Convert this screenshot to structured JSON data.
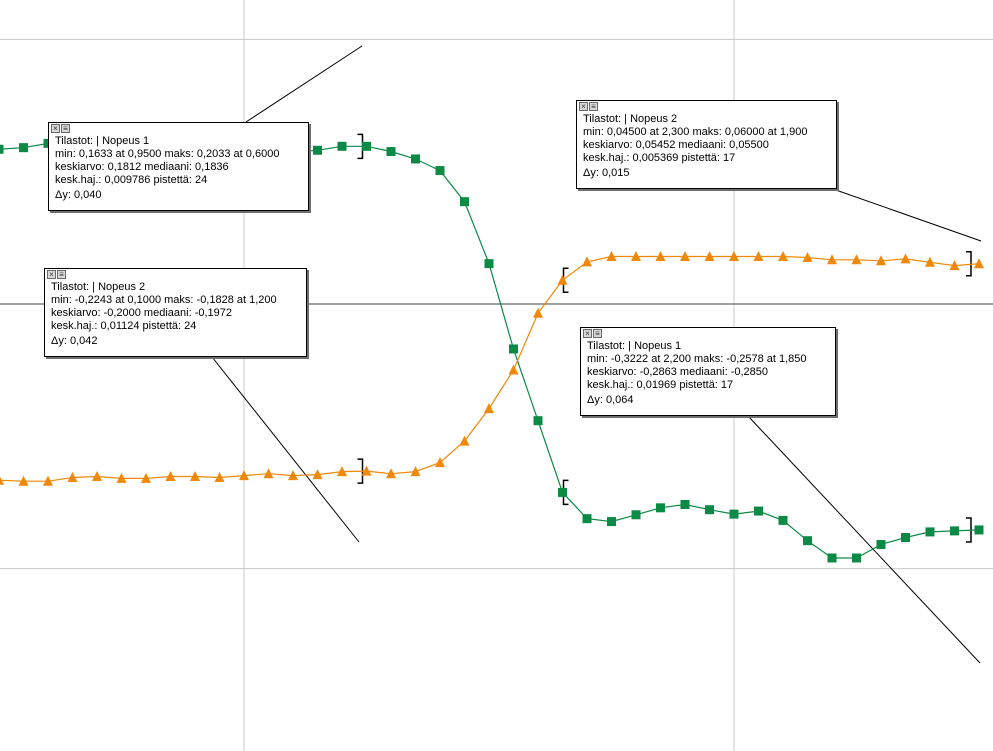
{
  "colors": {
    "series_green": "#0b8a45",
    "series_orange": "#f0880a",
    "grid": "#c8c8c8",
    "x_axis": "#808080",
    "background": "#ffffff"
  },
  "chart_data": {
    "type": "line",
    "title": "",
    "xlabel": "",
    "ylabel": "",
    "grid": true,
    "series": [
      {
        "name": "Nopeus 1",
        "marker": "square",
        "color": "#0b8a45",
        "x": [
          0.0,
          0.05,
          0.1,
          0.15,
          0.2,
          0.25,
          0.3,
          0.35,
          0.4,
          0.45,
          0.5,
          0.55,
          0.6,
          0.65,
          0.7,
          0.75,
          0.8,
          0.85,
          0.9,
          0.95,
          1.0,
          1.05,
          1.1,
          1.15,
          1.2,
          1.25,
          1.3,
          1.35,
          1.4,
          1.45,
          1.5,
          1.55,
          1.6,
          1.65,
          1.7,
          1.75,
          1.8,
          1.85,
          1.9,
          1.95,
          2.0
        ],
        "y": [
          0.1959,
          0.1979,
          0.2033,
          0.1922,
          0.1881,
          0.1922,
          0.1922,
          0.1881,
          0.1856,
          0.1836,
          0.1836,
          0.1897,
          0.1922,
          0.1946,
          0.1996,
          0.1996,
          0.193,
          0.1836,
          0.1689,
          0.1295,
          0.0511,
          -0.0569,
          -0.1477,
          -0.2385,
          -0.2717,
          -0.2754,
          -0.2668,
          -0.258,
          -0.2538,
          -0.2604,
          -0.266,
          -0.2621,
          -0.2739,
          -0.2996,
          -0.3215,
          -0.3215,
          -0.3044,
          -0.2956,
          -0.2885,
          -0.2872,
          -0.286
        ]
      },
      {
        "name": "Nopeus 2",
        "marker": "triangle",
        "color": "#f0880a",
        "x": [
          0.0,
          0.05,
          0.1,
          0.15,
          0.2,
          0.25,
          0.3,
          0.35,
          0.4,
          0.45,
          0.5,
          0.55,
          0.6,
          0.65,
          0.7,
          0.75,
          0.8,
          0.85,
          0.9,
          0.95,
          1.0,
          1.05,
          1.1,
          1.15,
          1.2,
          1.25,
          1.3,
          1.35,
          1.4,
          1.45,
          1.5,
          1.55,
          1.6,
          1.65,
          1.7,
          1.75,
          1.8,
          1.85,
          1.9,
          1.95,
          2.0
        ],
        "y": [
          -0.2231,
          -0.2243,
          -0.2243,
          -0.2196,
          -0.2184,
          -0.2208,
          -0.2208,
          -0.2184,
          -0.2184,
          -0.2196,
          -0.2172,
          -0.2148,
          -0.2172,
          -0.216,
          -0.2121,
          -0.2115,
          -0.2148,
          -0.2121,
          -0.2007,
          -0.1736,
          -0.1324,
          -0.0836,
          -0.0116,
          0.03,
          0.0533,
          0.0601,
          0.0601,
          0.0601,
          0.0601,
          0.0601,
          0.0601,
          0.0601,
          0.0601,
          0.0589,
          0.0559,
          0.0559,
          0.0547,
          0.0571,
          0.0528,
          0.0486,
          0.051
        ]
      }
    ]
  },
  "stats_boxes": [
    {
      "header": "Tilastot:   | Nopeus 1",
      "line1": "min: 0,1633 at 0,9500 maks: 0,2033 at 0,6000",
      "line2": "keskiarvo: 0,1812 mediaani: 0,1836",
      "line3": "kesk.haj.: 0,009786 pistettä: 24",
      "delta": "Δy: 0,040"
    },
    {
      "header": "Tilastot:   | Nopeus 2",
      "line1": "min: -0,2243 at 0,1000 maks: -0,1828 at 1,200",
      "line2": "keskiarvo: -0,2000 mediaani: -0,1972",
      "line3": "kesk.haj.: 0,01124 pistettä: 24",
      "delta": "Δy: 0,042"
    },
    {
      "header": "Tilastot:   | Nopeus 2",
      "line1": "min: 0,04500 at 2,300 maks: 0,06000 at 1,900",
      "line2": "keskiarvo: 0,05452 mediaani: 0,05500",
      "line3": "kesk.haj.: 0,005369 pistettä: 17",
      "delta": "Δy: 0,015"
    },
    {
      "header": "Tilastot:   | Nopeus 1",
      "line1": "min: -0,3222 at 2,200 maks: -0,2578 at 1,850",
      "line2": "keskiarvo: -0,2863 mediaani: -0,2850",
      "line3": "kesk.haj.: 0,01969 pistettä: 17",
      "delta": "Δy: 0,064"
    }
  ],
  "box_buttons": {
    "close_glyph": "×",
    "menu_glyph": "≡"
  }
}
